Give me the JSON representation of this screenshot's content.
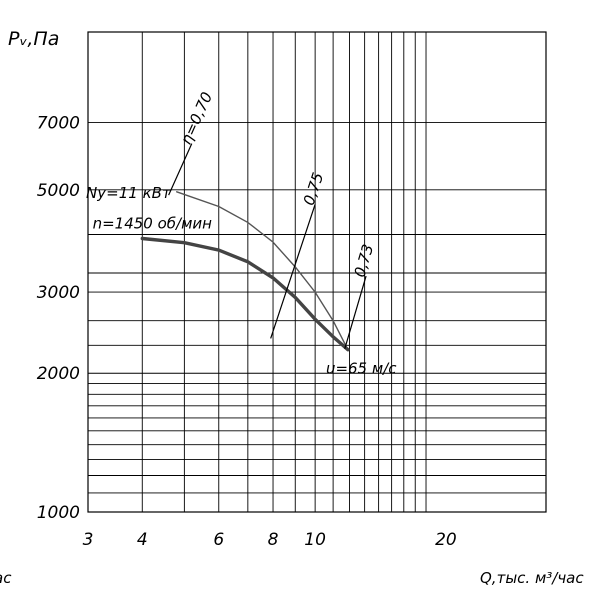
{
  "chart_data": {
    "type": "line",
    "title": "",
    "ylabel": "Pᵥ,Па",
    "xlabel": "Q,тыс. м³/час",
    "xlabel_cut": "ас",
    "x_scale": "log",
    "y_scale": "log",
    "xlim": [
      3,
      34
    ],
    "ylim": [
      1000,
      11000
    ],
    "grid": true,
    "x_ticks": [
      {
        "value": 3,
        "label": "3"
      },
      {
        "value": 4,
        "label": "4"
      },
      {
        "value": 6,
        "label": "6"
      },
      {
        "value": 8,
        "label": "8"
      },
      {
        "value": 10,
        "label": "10"
      },
      {
        "value": 20,
        "label": "20"
      }
    ],
    "x_grid": [
      4,
      5,
      6,
      7,
      8,
      9,
      10,
      11,
      12,
      13,
      14,
      15,
      16,
      17,
      18
    ],
    "y_ticks": [
      {
        "value": 1000,
        "label": "1000"
      },
      {
        "value": 2000,
        "label": "2000"
      },
      {
        "value": 3000,
        "label": "3000"
      },
      {
        "value": 5000,
        "label": "5000"
      },
      {
        "value": 7000,
        "label": "7000"
      }
    ],
    "y_grid": [
      1100,
      1200,
      1300,
      1400,
      1500,
      1600,
      1700,
      1800,
      1900,
      2000,
      2300,
      2600,
      3000,
      3300,
      4000,
      5000,
      7000
    ],
    "series": [
      {
        "kind": "power-curve",
        "values": [
          [
            4.8,
            4950
          ],
          [
            6.0,
            4600
          ],
          [
            7.0,
            4250
          ],
          [
            8.0,
            3850
          ],
          [
            9.0,
            3400
          ],
          [
            10.0,
            3000
          ],
          [
            11.0,
            2600
          ],
          [
            11.9,
            2250
          ]
        ]
      },
      {
        "kind": "pressure-curve",
        "values": [
          [
            4.0,
            3920
          ],
          [
            5.0,
            3840
          ],
          [
            6.0,
            3700
          ],
          [
            7.0,
            3490
          ],
          [
            8.0,
            3220
          ],
          [
            9.0,
            2920
          ],
          [
            10.0,
            2620
          ],
          [
            11.0,
            2400
          ],
          [
            11.9,
            2250
          ]
        ]
      }
    ],
    "efficiency_lines": [
      {
        "label": "η=0,70",
        "from": [
          4.6,
          4870
        ],
        "to": [
          5.2,
          6300
        ]
      },
      {
        "label": "0,75",
        "from": [
          7.9,
          2380
        ],
        "to": [
          10.0,
          4650
        ]
      },
      {
        "label": "0,73",
        "from": [
          11.7,
          2260
        ],
        "to": [
          13.1,
          3250
        ]
      }
    ],
    "annotations": [
      {
        "text": "Ny=11 кВт",
        "at": "power-curve-start"
      },
      {
        "text": "n=1450 об/мин",
        "at": "pressure-curve-start"
      },
      {
        "text": "u=65 м/с",
        "at": "curve-endpoint"
      }
    ]
  }
}
